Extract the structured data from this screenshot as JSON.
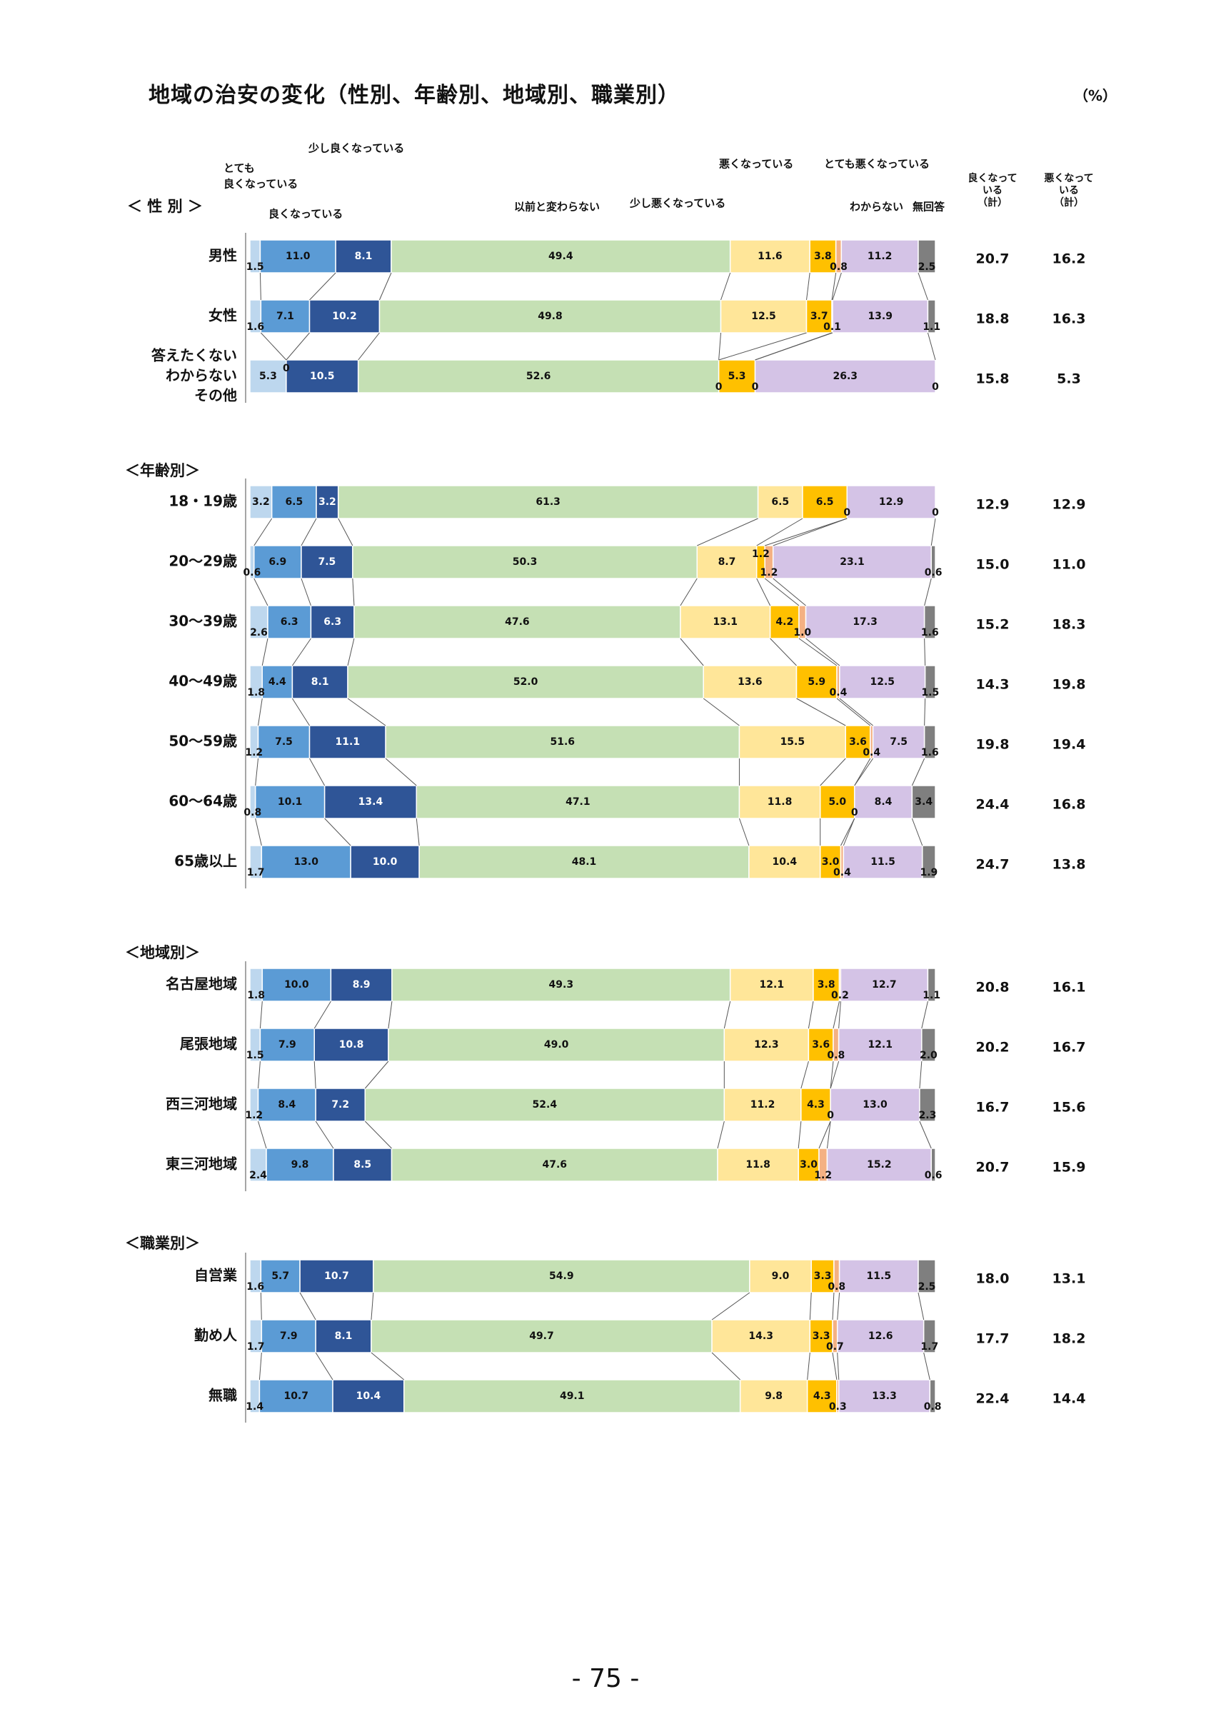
{
  "page": {
    "title": "地域の治安の変化（性別、年齢別、地域別、職業別）",
    "unit": "（%）",
    "page_number": "- 75 -"
  },
  "colors": {
    "series": [
      "#bdd7ee",
      "#5b9bd5",
      "#2f5597",
      "#c5e0b4",
      "#ffe699",
      "#ffc000",
      "#f4b183",
      "#d4c3e6",
      "#7f7f7f"
    ],
    "border": "#ffffff",
    "line": "#555555"
  },
  "columns": {
    "good_total": "良くなって\nいる\n（計）",
    "bad_total": "悪くなって\nいる\n（計）"
  },
  "chart_data": {
    "type": "bar",
    "stacked": true,
    "orientation": "horizontal",
    "series": [
      {
        "name": "とても\n良くなっている"
      },
      {
        "name": "良くなっている"
      },
      {
        "name": "少し良くなっている"
      },
      {
        "name": "以前と変わらない"
      },
      {
        "name": "少し悪くなっている"
      },
      {
        "name": "悪くなっている"
      },
      {
        "name": "とても悪くなっている"
      },
      {
        "name": "わからない"
      },
      {
        "name": "無回答"
      }
    ],
    "groups": [
      {
        "label": "＜ 性 別 ＞",
        "rows": [
          {
            "label": "男性",
            "values": [
              1.5,
              11.0,
              8.1,
              49.4,
              11.6,
              3.8,
              0.8,
              11.2,
              2.5
            ],
            "good": "20.7",
            "bad": "16.2"
          },
          {
            "label": "女性",
            "values": [
              1.6,
              7.1,
              10.2,
              49.8,
              12.5,
              3.7,
              0.1,
              13.9,
              1.1
            ],
            "good": "18.8",
            "bad": "16.3"
          },
          {
            "label": "答えたくない\nわからない\nその他",
            "values": [
              5.3,
              0,
              10.5,
              52.6,
              0,
              5.3,
              0,
              26.3,
              0
            ],
            "good": "15.8",
            "bad": "5.3"
          }
        ]
      },
      {
        "label": "＜年齢別＞",
        "rows": [
          {
            "label": "18・19歳",
            "values": [
              3.2,
              6.5,
              3.2,
              61.3,
              6.5,
              6.5,
              0,
              12.9,
              0
            ],
            "good": "12.9",
            "bad": "12.9"
          },
          {
            "label": "20～29歳",
            "values": [
              0.6,
              6.9,
              7.5,
              50.3,
              8.7,
              1.2,
              1.2,
              23.1,
              0.6
            ],
            "good": "15.0",
            "bad": "11.0"
          },
          {
            "label": "30～39歳",
            "values": [
              2.6,
              6.3,
              6.3,
              47.6,
              13.1,
              4.2,
              1.0,
              17.3,
              1.6
            ],
            "good": "15.2",
            "bad": "18.3"
          },
          {
            "label": "40～49歳",
            "values": [
              1.8,
              4.4,
              8.1,
              52.0,
              13.6,
              5.9,
              0.4,
              12.5,
              1.5
            ],
            "good": "14.3",
            "bad": "19.8"
          },
          {
            "label": "50～59歳",
            "values": [
              1.2,
              7.5,
              11.1,
              51.6,
              15.5,
              3.6,
              0.4,
              7.5,
              1.6
            ],
            "good": "19.8",
            "bad": "19.4"
          },
          {
            "label": "60～64歳",
            "values": [
              0.8,
              10.1,
              13.4,
              47.1,
              11.8,
              5.0,
              0,
              8.4,
              3.4
            ],
            "good": "24.4",
            "bad": "16.8"
          },
          {
            "label": "65歳以上",
            "values": [
              1.7,
              13.0,
              10.0,
              48.1,
              10.4,
              3.0,
              0.4,
              11.5,
              1.9
            ],
            "good": "24.7",
            "bad": "13.8"
          }
        ]
      },
      {
        "label": "＜地域別＞",
        "rows": [
          {
            "label": "名古屋地域",
            "values": [
              1.8,
              10.0,
              8.9,
              49.3,
              12.1,
              3.8,
              0.2,
              12.7,
              1.1
            ],
            "good": "20.8",
            "bad": "16.1"
          },
          {
            "label": "尾張地域",
            "values": [
              1.5,
              7.9,
              10.8,
              49.0,
              12.3,
              3.6,
              0.8,
              12.1,
              2.0
            ],
            "good": "20.2",
            "bad": "16.7"
          },
          {
            "label": "西三河地域",
            "values": [
              1.2,
              8.4,
              7.2,
              52.4,
              11.2,
              4.3,
              0,
              13.0,
              2.3
            ],
            "good": "16.7",
            "bad": "15.6"
          },
          {
            "label": "東三河地域",
            "values": [
              2.4,
              9.8,
              8.5,
              47.6,
              11.8,
              3.0,
              1.2,
              15.2,
              0.6
            ],
            "good": "20.7",
            "bad": "15.9"
          }
        ]
      },
      {
        "label": "＜職業別＞",
        "rows": [
          {
            "label": "自営業",
            "values": [
              1.6,
              5.7,
              10.7,
              54.9,
              9.0,
              3.3,
              0.8,
              11.5,
              2.5
            ],
            "good": "18.0",
            "bad": "13.1"
          },
          {
            "label": "勤め人",
            "values": [
              1.7,
              7.9,
              8.1,
              49.7,
              14.3,
              3.3,
              0.7,
              12.6,
              1.7
            ],
            "good": "17.7",
            "bad": "18.2"
          },
          {
            "label": "無職",
            "values": [
              1.4,
              10.7,
              10.4,
              49.1,
              9.8,
              4.3,
              0.3,
              13.3,
              0.8
            ],
            "good": "22.4",
            "bad": "14.4"
          }
        ]
      }
    ]
  }
}
